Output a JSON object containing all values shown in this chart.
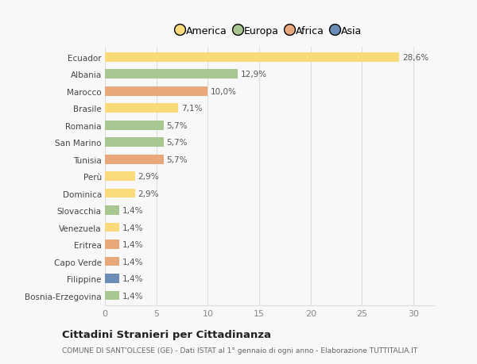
{
  "countries": [
    "Ecuador",
    "Albania",
    "Marocco",
    "Brasile",
    "Romania",
    "San Marino",
    "Tunisia",
    "Perù",
    "Dominica",
    "Slovacchia",
    "Venezuela",
    "Eritrea",
    "Capo Verde",
    "Filippine",
    "Bosnia-Erzegovina"
  ],
  "values": [
    28.6,
    12.9,
    10.0,
    7.1,
    5.7,
    5.7,
    5.7,
    2.9,
    2.9,
    1.4,
    1.4,
    1.4,
    1.4,
    1.4,
    1.4
  ],
  "labels": [
    "28,6%",
    "12,9%",
    "10,0%",
    "7,1%",
    "5,7%",
    "5,7%",
    "5,7%",
    "2,9%",
    "2,9%",
    "1,4%",
    "1,4%",
    "1,4%",
    "1,4%",
    "1,4%",
    "1,4%"
  ],
  "continents": [
    "America",
    "Europa",
    "Africa",
    "America",
    "Europa",
    "Europa",
    "Africa",
    "America",
    "America",
    "Europa",
    "America",
    "Africa",
    "Africa",
    "Asia",
    "Europa"
  ],
  "colors": {
    "America": "#FADA7A",
    "Europa": "#A8C68F",
    "Africa": "#E8A87C",
    "Asia": "#6B8DB5"
  },
  "xlim": [
    0,
    32
  ],
  "xticks": [
    0,
    5,
    10,
    15,
    20,
    25,
    30
  ],
  "title": "Cittadini Stranieri per Cittadinanza",
  "subtitle": "COMUNE DI SANT'OLCESE (GE) - Dati ISTAT al 1° gennaio di ogni anno - Elaborazione TUTTITALIA.IT",
  "background_color": "#f8f8f8",
  "grid_color": "#dddddd",
  "bar_height": 0.55
}
